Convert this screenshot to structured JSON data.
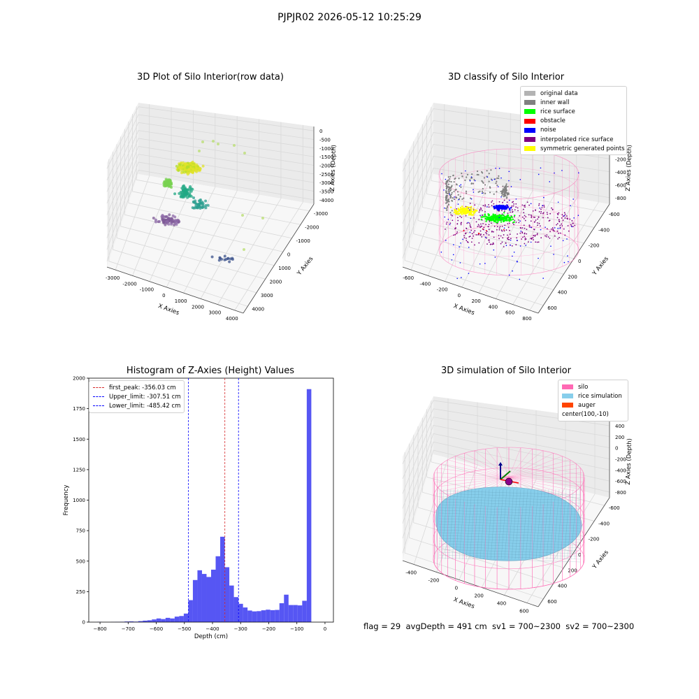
{
  "suptitle": "PJPJR02 2026-05-12 10:25:29",
  "footer": "flag = 29  avgDepth = 491 cm  sv1 = 700~2300  sv2 = 700~2300",
  "colors": {
    "original": "#b3b3b3",
    "inner_wall": "#808080",
    "rice_surface": "#00ff00",
    "obstacle": "#ff0000",
    "noise": "#0000ff",
    "interpolated": "#800080",
    "symmetric": "#ffff00",
    "silo": "#ff69b4",
    "rice_sim": "#87ceeb",
    "auger": "#ff4500",
    "hist_bar": "#4d4df2",
    "peak_line": "#d62728",
    "limit_line": "#0000ff"
  },
  "chart_data": [
    {
      "type": "scatter",
      "title": "3D Plot of Silo Interior(row data)",
      "xlabel": "X Axies",
      "ylabel": "Y Axies",
      "zlabel": "Z Axies (Depth)",
      "xticks": [
        "-3000",
        "-2000",
        "-1000",
        "0",
        "1000",
        "2000",
        "3000",
        "4000"
      ],
      "yticks": [
        "-3000",
        "-2000",
        "-1000",
        "0",
        "1000",
        "2000",
        "3000",
        "4000"
      ],
      "zticks": [
        "0",
        "-500",
        "-1000",
        "-1500",
        "-2000",
        "-2500",
        "-3000",
        "-3500",
        "-4000"
      ],
      "colormap": "viridis"
    },
    {
      "type": "scatter",
      "title": "3D classify of Silo Interior",
      "xlabel": "X Axies",
      "ylabel": "Y Axies",
      "zlabel": "Z Axies (Depth)",
      "xticks": [
        "-600",
        "-400",
        "-200",
        "0",
        "200",
        "400",
        "600",
        "800"
      ],
      "yticks": [
        "-600",
        "-400",
        "-200",
        "0",
        "200",
        "400",
        "600"
      ],
      "zticks": [
        "200",
        "0",
        "-200",
        "-400",
        "-600",
        "-800"
      ],
      "legend": [
        {
          "label": "original data",
          "color": "#b3b3b3"
        },
        {
          "label": "inner wall",
          "color": "#808080"
        },
        {
          "label": "rice surface",
          "color": "#00ff00"
        },
        {
          "label": "obstacle",
          "color": "#ff0000"
        },
        {
          "label": "noise",
          "color": "#0000ff"
        },
        {
          "label": "interpolated rice surface",
          "color": "#800080"
        },
        {
          "label": "symmetric generated points",
          "color": "#ffff00"
        }
      ],
      "legend_position": "upper right"
    },
    {
      "type": "bar",
      "title": "Histogram of Z-Axies (Height) Values",
      "xlabel": "Depth (cm)",
      "ylabel": "Frequency",
      "xlim": [
        -840,
        30
      ],
      "ylim": [
        0,
        2000
      ],
      "xticks": [
        -800,
        -700,
        -600,
        -500,
        -400,
        -300,
        -200,
        -100,
        0
      ],
      "yticks": [
        0,
        250,
        500,
        750,
        1000,
        1250,
        1500,
        1750,
        2000
      ],
      "bin_width": 16.2,
      "bin_start": -810,
      "values": [
        2,
        0,
        0,
        1,
        2,
        3,
        5,
        6,
        4,
        8,
        12,
        15,
        22,
        30,
        25,
        35,
        30,
        45,
        50,
        70,
        180,
        345,
        425,
        395,
        370,
        430,
        540,
        700,
        450,
        300,
        205,
        150,
        120,
        95,
        88,
        90,
        97,
        102,
        98,
        100,
        155,
        225,
        140,
        140,
        137,
        175,
        1910
      ],
      "lines": [
        {
          "label": "first_peak: -356.03 cm",
          "x": -356.03,
          "color": "#d62728"
        },
        {
          "label": "Upper_limit: -307.51 cm",
          "x": -307.51,
          "color": "#0000ff"
        },
        {
          "label": "Lower_limit: -485.42 cm",
          "x": -485.42,
          "color": "#0000ff"
        }
      ],
      "legend_position": "upper left"
    },
    {
      "type": "area",
      "title": "3D simulation of Silo Interior",
      "xlabel": "X Axies",
      "ylabel": "Y Axies",
      "zlabel": "Z Axies (Depth)",
      "xticks": [
        "-400",
        "-200",
        "0",
        "200",
        "400",
        "600"
      ],
      "yticks": [
        "-600",
        "-400",
        "-200",
        "0",
        "200",
        "400",
        "600"
      ],
      "zticks": [
        "400",
        "200",
        "0",
        "-200",
        "-400",
        "-600",
        "-800"
      ],
      "legend": [
        {
          "label": "silo",
          "color": "#ff69b4"
        },
        {
          "label": "rice simulation",
          "color": "#87ceeb"
        },
        {
          "label": "auger",
          "color": "#ff4500"
        },
        {
          "label": "center(100,-10)",
          "color": ""
        }
      ],
      "legend_position": "upper right"
    }
  ]
}
